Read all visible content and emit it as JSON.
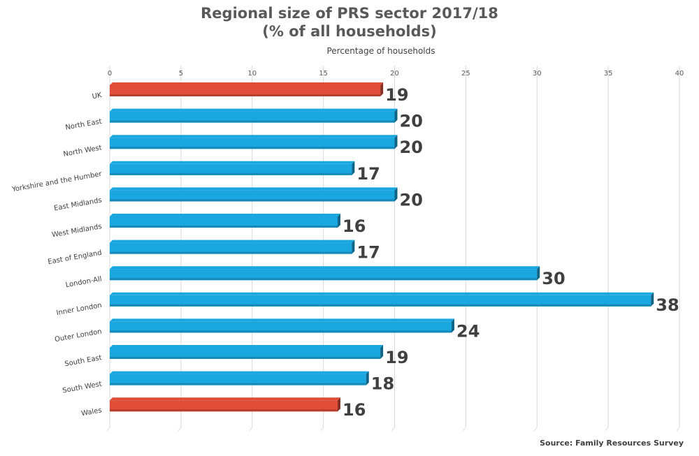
{
  "chart_data": {
    "type": "bar",
    "orientation": "horizontal",
    "title_line1": "Regional size of PRS sector 2017/18",
    "title_line2": "(% of all households)",
    "xlabel": "Percentage of households",
    "ylabel": "",
    "xlim": [
      0,
      40
    ],
    "ticks": [
      0,
      5,
      10,
      15,
      20,
      25,
      30,
      35,
      40
    ],
    "tick_labels": [
      "0",
      "5",
      "10",
      "15",
      "20",
      "25",
      "30",
      "35",
      "40"
    ],
    "categories": [
      "UK",
      "North East",
      "North West",
      "Yorkshire and the Humber",
      "East Midlands",
      "West Midlands",
      "East of England",
      "London-All",
      "Inner London",
      "Outer London",
      "South East",
      "South West",
      "Wales"
    ],
    "values": [
      19,
      20,
      20,
      17,
      20,
      16,
      17,
      30,
      38,
      24,
      19,
      18,
      16
    ],
    "value_labels": [
      "19",
      "20",
      "20",
      "17",
      "20",
      "16",
      "17",
      "30",
      "38",
      "24",
      "19",
      "18",
      "16"
    ],
    "bar_colors": [
      "#e04e39",
      "#1aa7e0",
      "#1aa7e0",
      "#1aa7e0",
      "#1aa7e0",
      "#1aa7e0",
      "#1aa7e0",
      "#1aa7e0",
      "#1aa7e0",
      "#1aa7e0",
      "#1aa7e0",
      "#1aa7e0",
      "#e04e39"
    ],
    "grid": true,
    "legend": "none"
  },
  "source_text": "Source: Family Resources Survey"
}
